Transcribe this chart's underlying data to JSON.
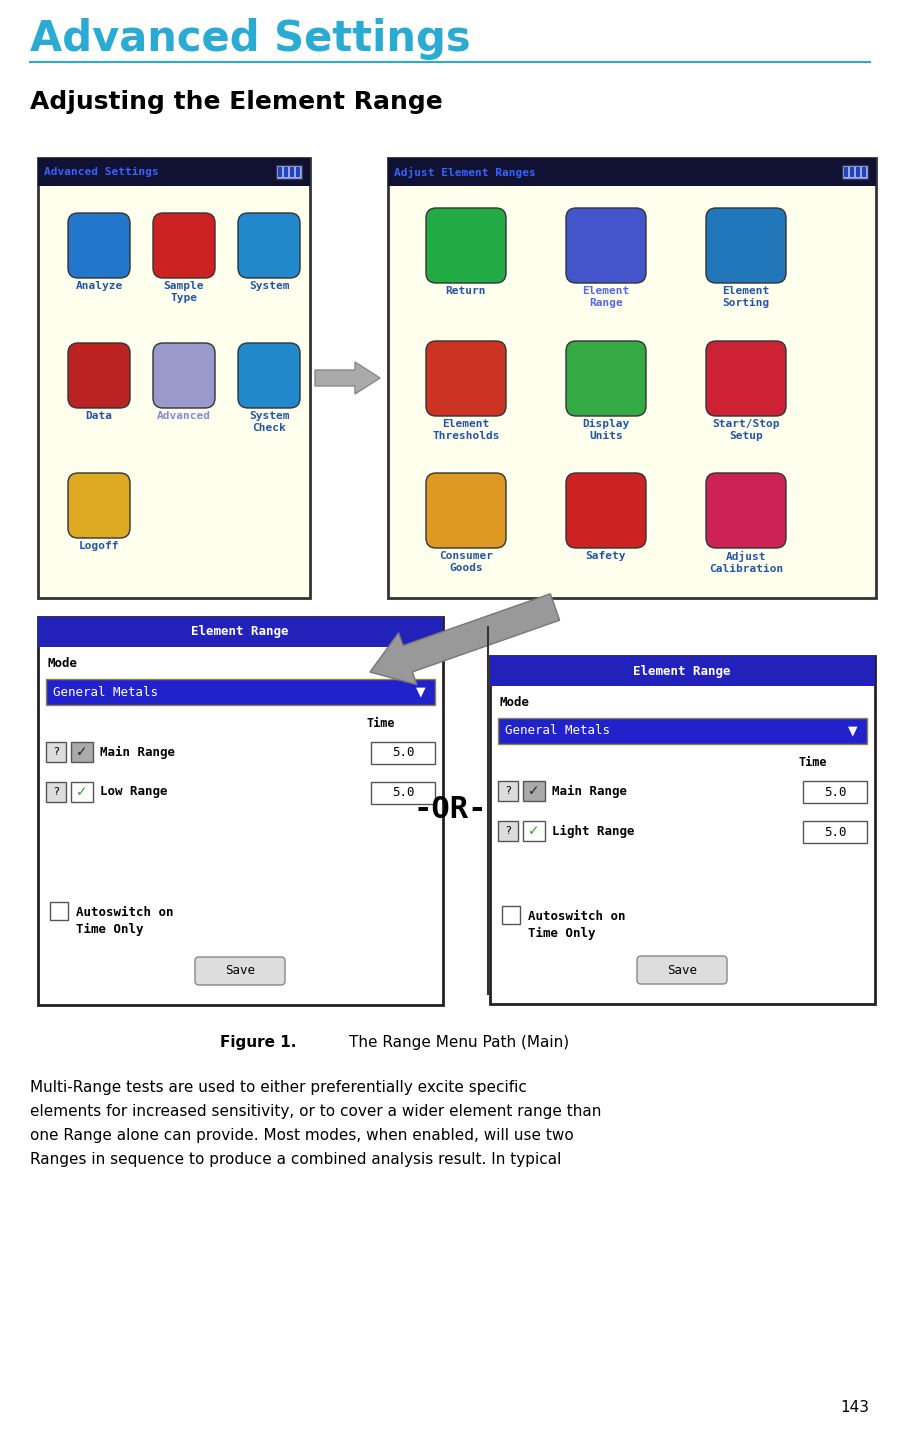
{
  "page_title": "Advanced Settings",
  "page_title_color": "#29ABD4",
  "section_title": "Adjusting the Element Range",
  "section_title_color": "#000000",
  "figure_caption": "Figure 1.",
  "figure_caption_label": "The Range Menu Path (Main)",
  "body_text_lines": [
    "Multi-Range tests are used to either preferentially excite specific",
    "elements for increased sensitivity, or to cover a wider element range than",
    "one Range alone can provide. Most modes, when enabled, will use two",
    "Ranges in sequence to produce a combined analysis result. In typical"
  ],
  "page_number": "143",
  "bg_color": "#FFFFFF",
  "scr_border": "#333333",
  "scr1_header_text_color": "#4488FF",
  "scr_header_bg": "#222244",
  "batt_fill": "#88BBFF",
  "batt_seg": "#2244AA",
  "dropdown_bg": "#2222CC",
  "dropdown_text": "#FFFFFF",
  "screen_bg": "#FFFFFF",
  "range_header_bg": "#2222AA",
  "range_header_text": "#FFFFFF"
}
